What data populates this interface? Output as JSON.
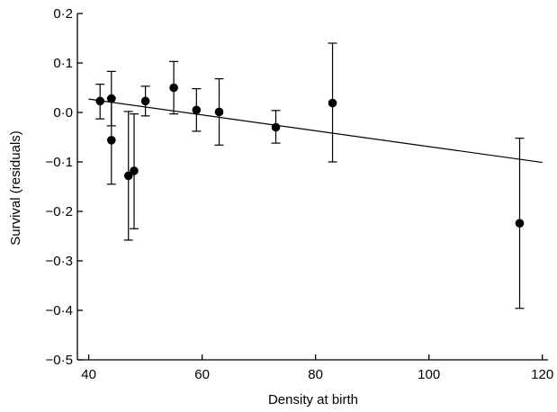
{
  "chart_data": {
    "type": "scatter",
    "title": "",
    "xlabel": "Density at birth",
    "ylabel": "Survival (residuals)",
    "xlim": [
      38,
      121
    ],
    "ylim": [
      -0.5,
      0.2
    ],
    "x_ticks": [
      40,
      60,
      80,
      100,
      120
    ],
    "x_tick_labels": [
      "40",
      "60",
      "80",
      "100",
      "120"
    ],
    "y_ticks": [
      -0.5,
      -0.4,
      -0.3,
      -0.2,
      -0.1,
      0.0,
      0.1,
      0.2
    ],
    "y_tick_labels": [
      "−0·5",
      "−0·4",
      "−0·3",
      "−0·2",
      "−0·1",
      "0·0",
      "0·1",
      "0·2"
    ],
    "grid": false,
    "points": [
      {
        "x": 42,
        "y": 0.023,
        "lo": -0.013,
        "hi": 0.057
      },
      {
        "x": 44,
        "y": 0.028,
        "lo": -0.027,
        "hi": 0.083
      },
      {
        "x": 44,
        "y": -0.056,
        "lo": -0.145,
        "hi": 0.03
      },
      {
        "x": 47,
        "y": -0.128,
        "lo": -0.258,
        "hi": 0.002
      },
      {
        "x": 48,
        "y": -0.118,
        "lo": -0.235,
        "hi": -0.003
      },
      {
        "x": 50,
        "y": 0.023,
        "lo": -0.007,
        "hi": 0.053
      },
      {
        "x": 55,
        "y": 0.05,
        "lo": -0.003,
        "hi": 0.103
      },
      {
        "x": 59,
        "y": 0.005,
        "lo": -0.038,
        "hi": 0.048
      },
      {
        "x": 63,
        "y": 0.001,
        "lo": -0.066,
        "hi": 0.068
      },
      {
        "x": 73,
        "y": -0.03,
        "lo": -0.062,
        "hi": 0.004
      },
      {
        "x": 83,
        "y": 0.019,
        "lo": -0.1,
        "hi": 0.14
      },
      {
        "x": 116,
        "y": -0.224,
        "lo": -0.396,
        "hi": -0.052
      }
    ],
    "fit_line": {
      "x": [
        40,
        120
      ],
      "y": [
        0.027,
        -0.101
      ]
    }
  }
}
